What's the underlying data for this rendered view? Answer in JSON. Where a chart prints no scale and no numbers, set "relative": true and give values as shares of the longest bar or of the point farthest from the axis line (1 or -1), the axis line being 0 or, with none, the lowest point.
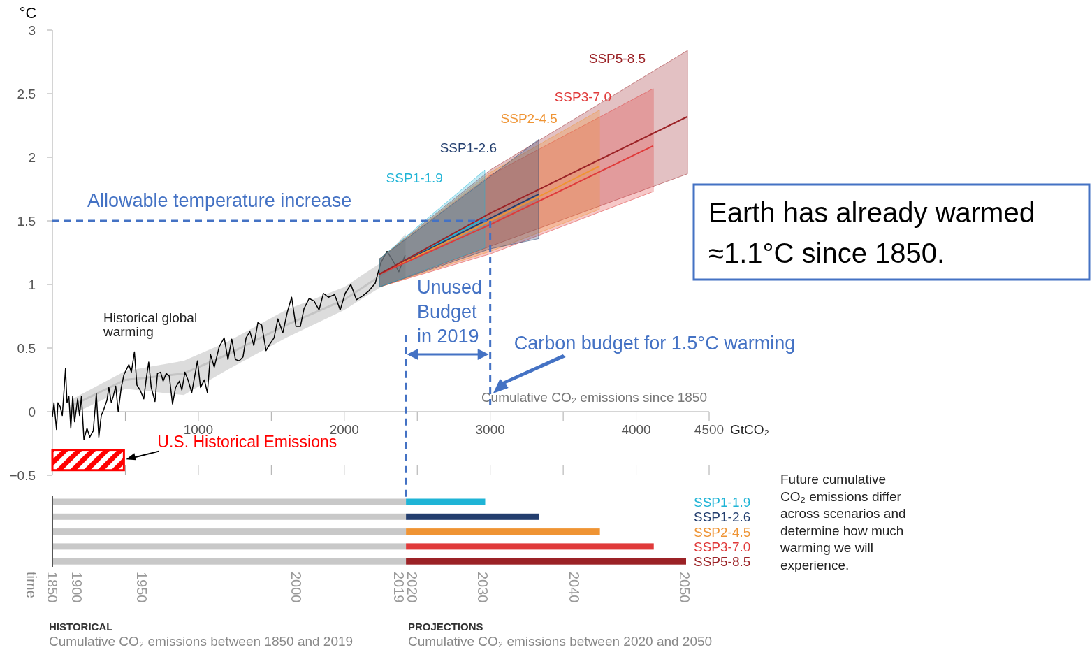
{
  "chart_data": [
    {
      "type": "line",
      "ylabel": "°C",
      "xlabel": "Cumulative CO₂ emissions since 1850",
      "xlim": [
        0,
        4500
      ],
      "ylim": [
        -0.5,
        3
      ],
      "xticks": [
        {
          "value": 500,
          "label": null
        },
        1000,
        {
          "value": 1500,
          "label": null
        },
        2000,
        {
          "value": 2500,
          "label": null
        },
        3000,
        {
          "value": 3500,
          "label": null
        },
        4000,
        4500
      ],
      "yticks": [
        {
          "value": -0.5,
          "label": "−0.5"
        },
        0,
        0.5,
        1,
        1.5,
        2,
        2.5,
        3
      ],
      "legend": false,
      "grid": false,
      "series": [
        {
          "color": "#c4c4c4",
          "x": [
            139,
            500,
            900,
            1200,
            1600,
            2000,
            2250,
            2420
          ],
          "values": [
            0.05,
            0.25,
            0.3,
            0.45,
            0.68,
            0.88,
            1.07,
            1.2
          ],
          "lower": [
            -0.02,
            0.18,
            0.13,
            0.33,
            0.58,
            0.8,
            0.98,
            1.06
          ],
          "upper": [
            0.1,
            0.32,
            0.4,
            0.55,
            0.8,
            0.98,
            1.17,
            1.4
          ]
        },
        {
          "color": "#000000",
          "x": [
            0,
            11,
            28,
            38,
            53,
            68,
            90,
            100,
            113,
            126,
            139,
            152,
            173,
            186,
            199,
            216,
            237,
            256,
            280,
            301,
            318,
            335,
            353,
            374,
            387,
            404,
            417,
            434,
            451,
            472,
            490,
            511,
            524,
            541,
            562,
            579,
            601,
            626,
            643,
            660,
            677,
            703,
            720,
            741,
            759,
            780,
            801,
            823,
            844,
            870,
            887,
            908,
            929,
            955,
            994,
            1015,
            1041,
            1062,
            1083,
            1109,
            1143,
            1177,
            1203,
            1229,
            1254,
            1280,
            1306,
            1327,
            1353,
            1380,
            1408,
            1434,
            1464,
            1489,
            1519,
            1545,
            1579,
            1609,
            1639,
            1669,
            1699,
            1724,
            1759,
            1793,
            1827,
            1857,
            1891,
            1934,
            1972,
            2006,
            2045,
            2083,
            2126,
            2169,
            2212,
            2250,
            2293,
            2331,
            2374,
            2417
          ],
          "values": [
            -0.04,
            0.07,
            -0.14,
            0.07,
            0.04,
            -0.03,
            0.34,
            0.07,
            0.12,
            -0.13,
            0.12,
            -0.08,
            0.1,
            -0.03,
            0.12,
            -0.22,
            -0.13,
            -0.2,
            -0.15,
            0.14,
            -0.2,
            -0.03,
            0.02,
            0.09,
            0.19,
            0.07,
            0.12,
            0.2,
            0,
            0.19,
            0.29,
            0.34,
            0.37,
            0.31,
            0.47,
            0.21,
            0.17,
            0.1,
            0.26,
            0.39,
            0.19,
            0.08,
            0.3,
            0.31,
            0.24,
            0.3,
            0.28,
            0.06,
            0.19,
            0.24,
            0.17,
            0.31,
            0.25,
            0.15,
            0.4,
            0.19,
            0.25,
            0.15,
            0.45,
            0.35,
            0.51,
            0.58,
            0.41,
            0.57,
            0.41,
            0.4,
            0.43,
            0.58,
            0.63,
            0.52,
            0.7,
            0.68,
            0.48,
            0.53,
            0.58,
            0.73,
            0.62,
            0.78,
            0.9,
            0.67,
            0.67,
            0.81,
            0.89,
            0.87,
            0.8,
            0.93,
            0.9,
            0.92,
            0.8,
            0.93,
            1,
            0.88,
            0.91,
            0.95,
            1.01,
            1.17,
            1.26,
            1.19,
            1.1,
            1.23
          ]
        },
        {
          "name": "SSP1-1.9",
          "color": "#1fb4d6",
          "x": [
            2240,
            2963
          ],
          "values": [
            1.08,
            1.52
          ],
          "lower": [
            0.98,
            1.29
          ],
          "upper": [
            1.2,
            1.9
          ]
        },
        {
          "name": "SSP1-2.6",
          "color": "#233e6e",
          "x": [
            2240,
            3000,
            3332
          ],
          "values": [
            1.08,
            1.52,
            1.71
          ],
          "lower": [
            0.98,
            1.28,
            1.36
          ],
          "upper": [
            1.2,
            1.85,
            2.14
          ]
        },
        {
          "name": "SSP2-4.5",
          "color": "#ef9434",
          "x": [
            2240,
            3000,
            3748
          ],
          "values": [
            1.08,
            1.5,
            1.93
          ],
          "lower": [
            0.98,
            1.26,
            1.59
          ],
          "upper": [
            1.2,
            1.88,
            2.37
          ]
        },
        {
          "name": "SSP3-7.0",
          "color": "#e03a3a",
          "x": [
            2240,
            3000,
            4117
          ],
          "values": [
            1.08,
            1.47,
            2.09
          ],
          "lower": [
            0.98,
            1.24,
            1.73
          ],
          "upper": [
            1.2,
            1.86,
            2.54
          ]
        },
        {
          "name": "SSP5-8.5",
          "color": "#9b2226",
          "x": [
            2240,
            3000,
            4352
          ],
          "values": [
            1.08,
            1.56,
            2.32
          ],
          "lower": [
            0.98,
            1.3,
            1.87
          ],
          "upper": [
            1.2,
            1.9,
            2.84
          ]
        }
      ],
      "ref_lines": [
        {
          "axis": "y",
          "value": 1.5,
          "label": "Allowable temperature increase",
          "color": "#4472c4",
          "line_style": "dashed"
        },
        {
          "axis": "x",
          "value": 3000,
          "label": "Carbon budget for 1.5°C warming",
          "color": "#4472c4",
          "line_style": "dashed"
        },
        {
          "axis": "x",
          "value": 2420,
          "label": null,
          "color": "#4472c4",
          "line_style": "dashed"
        }
      ],
      "bands": [
        {
          "axis": "x",
          "from": 0,
          "to": 490,
          "label": "U.S. Historical Emissions",
          "color": "#ff0000"
        }
      ],
      "annotations": [
        "Historical global warming",
        "Unused Budget in 2019",
        "GtCO₂",
        "Earth has already warmed ≈1.1°C since 1850."
      ]
    },
    {
      "type": "bar",
      "orientation": "horizontal",
      "stacked": true,
      "categories": [
        "SSP1-1.9",
        "SSP1-2.6",
        "SSP2-4.5",
        "SSP3-7.0",
        "SSP5-8.5"
      ],
      "relative": true,
      "series": [
        {
          "color": "#c8c8c8",
          "values": [
            0.558,
            0.558,
            0.558,
            0.558,
            0.558
          ]
        },
        {
          "colors": [
            "#1fb4d6",
            "#233e6e",
            "#ef9434",
            "#e03a3a",
            "#9b2226"
          ],
          "values": [
            0.125,
            0.21,
            0.306,
            0.391,
            0.442
          ]
        }
      ],
      "annotations": [
        "time",
        "1850",
        "1900",
        "1950",
        "2000",
        "2019",
        "2020",
        "2030",
        "2040",
        "2050",
        "Future cumulative CO₂ emissions differ across scenarios and determine how much warming we will experience.",
        "HISTORICAL",
        "Cumulative CO₂ emissions between 1850 and 2019",
        "PROJECTIONS",
        "Cumulative CO₂ emissions between 2020 and 2050"
      ]
    }
  ]
}
